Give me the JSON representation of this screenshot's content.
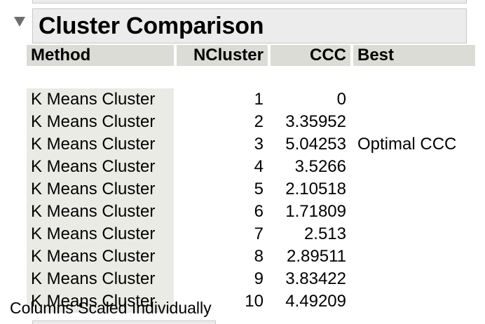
{
  "report": {
    "title": "Cluster Comparison",
    "columns": {
      "method": "Method",
      "ncluster": "NCluster",
      "ccc": "CCC",
      "best": "Best"
    },
    "rows": [
      {
        "method": "K Means Cluster",
        "ncluster": "1",
        "ccc": "0",
        "best": ""
      },
      {
        "method": "K Means Cluster",
        "ncluster": "2",
        "ccc": "3.35952",
        "best": ""
      },
      {
        "method": "K Means Cluster",
        "ncluster": "3",
        "ccc": "5.04253",
        "best": "Optimal CCC"
      },
      {
        "method": "K Means Cluster",
        "ncluster": "4",
        "ccc": "3.5266",
        "best": ""
      },
      {
        "method": "K Means Cluster",
        "ncluster": "5",
        "ccc": "2.10518",
        "best": ""
      },
      {
        "method": "K Means Cluster",
        "ncluster": "6",
        "ccc": "1.71809",
        "best": ""
      },
      {
        "method": "K Means Cluster",
        "ncluster": "7",
        "ccc": "2.513",
        "best": ""
      },
      {
        "method": "K Means Cluster",
        "ncluster": "8",
        "ccc": "2.89511",
        "best": ""
      },
      {
        "method": "K Means Cluster",
        "ncluster": "9",
        "ccc": "3.83422",
        "best": ""
      },
      {
        "method": "K Means Cluster",
        "ncluster": "10",
        "ccc": "4.49209",
        "best": ""
      }
    ],
    "footnote": "Columns Scaled Individually"
  },
  "icons": {
    "disclosure": "disclosure-triangle-down"
  }
}
